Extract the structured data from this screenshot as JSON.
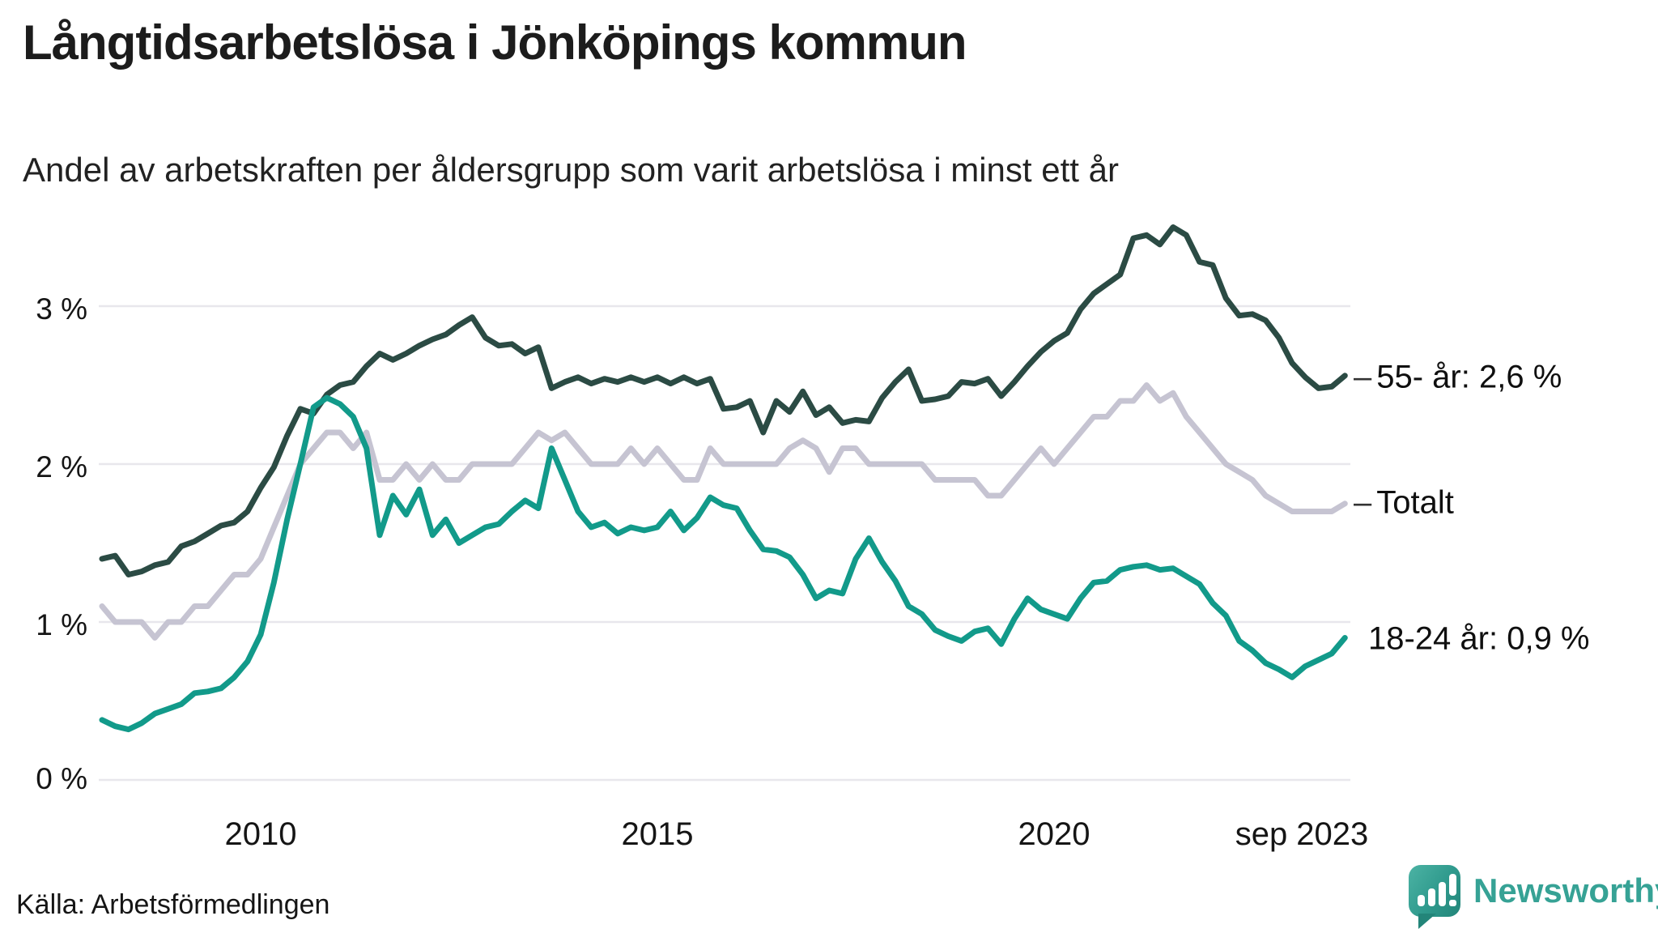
{
  "title": "Långtidsarbetslösa i Jönköpings kommun",
  "subtitle": "Andel av arbetskraften per åldersgrupp som varit arbetslösa i minst ett år",
  "source": "Källa: Arbetsförmedlingen",
  "logo": {
    "text": "Newsworthy"
  },
  "labels": {
    "dash": "–",
    "end_55": "55- år: 2,6 %",
    "end_totalt": "Totalt",
    "end_1824": "18-24 år: 0,9 %"
  },
  "colors": {
    "line_55": "#2b4b44",
    "line_totalt": "#c6c4d2",
    "line_1824": "#129a8a",
    "gridline": "#e8e7ec",
    "text": "#1a1a1a",
    "logo_teal": "#36a295"
  },
  "chart_data": {
    "type": "line",
    "title": "Långtidsarbetslösa i Jönköpings kommun",
    "subtitle": "Andel av arbetskraften per åldersgrupp som varit arbetslösa i minst ett år",
    "unit": "% av arbetskraften",
    "x_start_decimal_year": 2008.0,
    "x_end_decimal_year": 2023.667,
    "point_step_months": 2,
    "x_tick_labels": [
      "2010",
      "2015",
      "2020",
      "sep 2023"
    ],
    "x_tick_years": [
      2010,
      2015,
      2020,
      2023.667
    ],
    "y_tick_labels": [
      "0 %",
      "1 %",
      "2 %",
      "3 %"
    ],
    "y_tick_values": [
      0,
      1,
      2,
      3
    ],
    "ylim": [
      0,
      3.7
    ],
    "grid": "horizontal",
    "legend_position": "right-end-labels",
    "series": [
      {
        "name": "Totalt",
        "color": "#c6c4d2",
        "end_label": "Totalt",
        "values": [
          1.1,
          1.0,
          1.0,
          1.0,
          0.9,
          1.0,
          1.0,
          1.1,
          1.1,
          1.2,
          1.3,
          1.3,
          1.4,
          1.6,
          1.8,
          2.0,
          2.1,
          2.2,
          2.2,
          2.1,
          2.2,
          1.9,
          1.9,
          2.0,
          1.9,
          2.0,
          1.9,
          1.9,
          2.0,
          2.0,
          2.0,
          2.0,
          2.1,
          2.2,
          2.15,
          2.2,
          2.1,
          2.0,
          2.0,
          2.0,
          2.1,
          2.0,
          2.1,
          2.0,
          1.9,
          1.9,
          2.1,
          2.0,
          2.0,
          2.0,
          2.0,
          2.0,
          2.1,
          2.15,
          2.1,
          1.95,
          2.1,
          2.1,
          2.0,
          2.0,
          2.0,
          2.0,
          2.0,
          1.9,
          1.9,
          1.9,
          1.9,
          1.8,
          1.8,
          1.9,
          2.0,
          2.1,
          2.0,
          2.1,
          2.2,
          2.3,
          2.3,
          2.4,
          2.4,
          2.5,
          2.4,
          2.45,
          2.3,
          2.2,
          2.1,
          2.0,
          1.95,
          1.9,
          1.8,
          1.75,
          1.7,
          1.7,
          1.7,
          1.7,
          1.75
        ]
      },
      {
        "name": "55- år",
        "color": "#2b4b44",
        "end_label": "55- år: 2,6 %",
        "last_value": 2.6,
        "values": [
          1.4,
          1.42,
          1.3,
          1.32,
          1.36,
          1.38,
          1.48,
          1.51,
          1.56,
          1.61,
          1.63,
          1.7,
          1.85,
          1.98,
          2.18,
          2.35,
          2.32,
          2.44,
          2.5,
          2.52,
          2.62,
          2.7,
          2.66,
          2.7,
          2.75,
          2.79,
          2.82,
          2.88,
          2.93,
          2.8,
          2.75,
          2.76,
          2.7,
          2.74,
          2.48,
          2.52,
          2.55,
          2.51,
          2.54,
          2.52,
          2.55,
          2.52,
          2.55,
          2.51,
          2.55,
          2.51,
          2.54,
          2.35,
          2.36,
          2.4,
          2.2,
          2.4,
          2.33,
          2.46,
          2.31,
          2.36,
          2.26,
          2.28,
          2.27,
          2.42,
          2.52,
          2.6,
          2.4,
          2.41,
          2.43,
          2.52,
          2.51,
          2.54,
          2.43,
          2.52,
          2.62,
          2.71,
          2.78,
          2.83,
          2.98,
          3.08,
          3.14,
          3.2,
          3.43,
          3.45,
          3.39,
          3.5,
          3.45,
          3.28,
          3.26,
          3.05,
          2.94,
          2.95,
          2.91,
          2.8,
          2.64,
          2.55,
          2.48,
          2.49,
          2.56
        ]
      },
      {
        "name": "18-24 år",
        "color": "#129a8a",
        "end_label": "18-24 år: 0,9 %",
        "last_value": 0.9,
        "values": [
          0.38,
          0.34,
          0.32,
          0.36,
          0.42,
          0.45,
          0.48,
          0.55,
          0.56,
          0.58,
          0.65,
          0.75,
          0.92,
          1.25,
          1.65,
          2.0,
          2.36,
          2.42,
          2.38,
          2.3,
          2.1,
          1.55,
          1.8,
          1.68,
          1.84,
          1.55,
          1.65,
          1.5,
          1.55,
          1.6,
          1.62,
          1.7,
          1.77,
          1.72,
          2.1,
          1.9,
          1.7,
          1.6,
          1.63,
          1.56,
          1.6,
          1.58,
          1.6,
          1.7,
          1.58,
          1.66,
          1.79,
          1.74,
          1.72,
          1.58,
          1.46,
          1.45,
          1.41,
          1.3,
          1.15,
          1.2,
          1.18,
          1.4,
          1.53,
          1.38,
          1.26,
          1.1,
          1.05,
          0.95,
          0.91,
          0.88,
          0.94,
          0.96,
          0.86,
          1.02,
          1.15,
          1.08,
          1.05,
          1.02,
          1.15,
          1.25,
          1.26,
          1.33,
          1.35,
          1.36,
          1.33,
          1.34,
          1.29,
          1.24,
          1.12,
          1.04,
          0.88,
          0.82,
          0.74,
          0.7,
          0.65,
          0.72,
          0.76,
          0.8,
          0.9
        ]
      }
    ]
  }
}
